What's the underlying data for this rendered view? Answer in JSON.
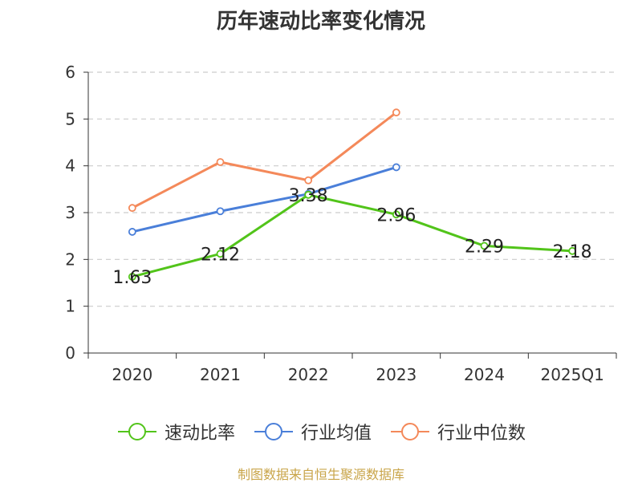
{
  "chart_data": {
    "type": "line",
    "title": "历年速动比率变化情况",
    "categories": [
      "2020",
      "2021",
      "2022",
      "2023",
      "2024",
      "2025Q1"
    ],
    "ylim": [
      0,
      6
    ],
    "yticks": [
      "0",
      "1",
      "2",
      "3",
      "4",
      "5",
      "6"
    ],
    "grid": true,
    "legend_position": "bottom",
    "series": [
      {
        "name": "速动比率",
        "color": "#52c41a",
        "values": [
          1.63,
          2.12,
          3.38,
          2.96,
          2.29,
          2.18
        ],
        "labels": [
          "1.63",
          "2.12",
          "3.38",
          "2.96",
          "2.29",
          "2.18"
        ]
      },
      {
        "name": "行业均值",
        "color": "#4a7fd9",
        "values": [
          2.59,
          3.03,
          3.4,
          3.97,
          null,
          null
        ]
      },
      {
        "name": "行业中位数",
        "color": "#f4895a",
        "values": [
          3.1,
          4.08,
          3.69,
          5.14,
          null,
          null
        ]
      }
    ]
  },
  "footer": {
    "source": "制图数据来自恒生聚源数据库"
  }
}
